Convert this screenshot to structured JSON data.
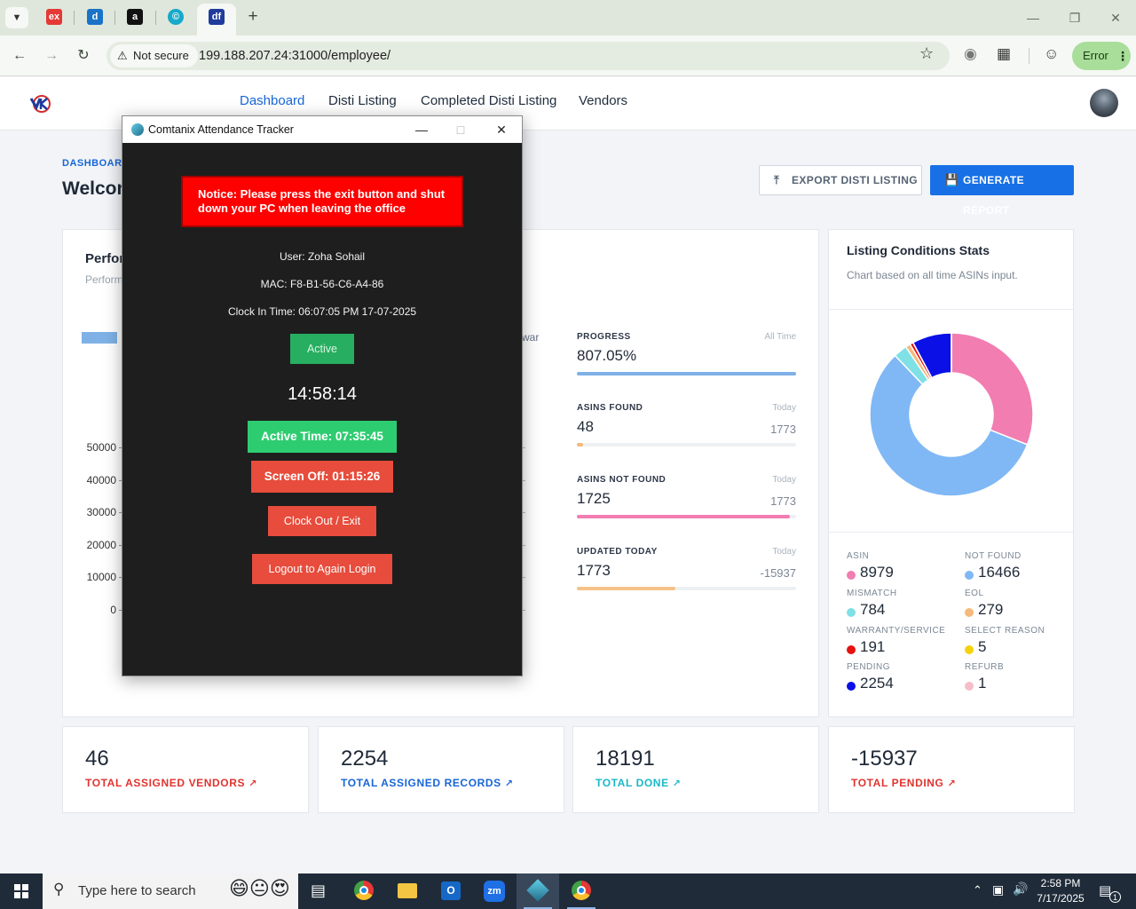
{
  "browser": {
    "url": "199.188.207.24:31000/employee/",
    "security_label": "Not secure",
    "error_label": "Error",
    "tabs": [
      {
        "icon": "ex-icon",
        "color": "#e53935",
        "glyph": "ex"
      },
      {
        "icon": "dell-like-icon",
        "color": "#1a73c8",
        "glyph": "d"
      },
      {
        "icon": "amazon-icon",
        "color": "#111111",
        "glyph": "a"
      },
      {
        "icon": "copyright-icon",
        "color": "#17a9c9",
        "glyph": "©"
      },
      {
        "icon": "df-icon",
        "color": "#1f3b9b",
        "glyph": "df"
      }
    ]
  },
  "nav": {
    "items": [
      "Dashboard",
      "Disti Listing",
      "Completed Disti Listing",
      "Vendors"
    ],
    "active_color": "#1766d6"
  },
  "page": {
    "breadcrumb": "DASHBOARD",
    "welcome": "Welcon",
    "export_label": "EXPORT DISTI LISTING",
    "report_label": "GENERATE REPORT"
  },
  "performance": {
    "title": "Perfor",
    "subtitle": "Perform",
    "legend_fragment": "war",
    "y_ticks": [
      "50000",
      "40000",
      "30000",
      "20000",
      "10000",
      "0"
    ],
    "progress": [
      {
        "label": "PROGRESS",
        "note": "All Time",
        "value": "807.05%",
        "total": "",
        "fill": 1.0,
        "color": "#7fb1e6"
      },
      {
        "label": "ASINS FOUND",
        "note": "Today",
        "value": "48",
        "total": "1773",
        "fill": 0.027,
        "color": "#f5b97a"
      },
      {
        "label": "ASINS NOT FOUND",
        "note": "Today",
        "value": "1725",
        "total": "1773",
        "fill": 0.973,
        "color": "#f27db1"
      },
      {
        "label": "UPDATED TODAY",
        "note": "Today",
        "value": "1773",
        "total": "-15937",
        "fill": 0.45,
        "color": "#f5c28a"
      }
    ]
  },
  "listing_stats": {
    "title": "Listing Conditions Stats",
    "subtitle": "Chart based on all time ASINs input.",
    "items": [
      {
        "label": "ASIN",
        "value": "8979",
        "color": "#f27db1"
      },
      {
        "label": "NOT FOUND",
        "value": "16466",
        "color": "#7fb8f5"
      },
      {
        "label": "MISMATCH",
        "value": "784",
        "color": "#7fe0e6"
      },
      {
        "label": "EOL",
        "value": "279",
        "color": "#f5b97a"
      },
      {
        "label": "WARRANTY/SERVICE",
        "value": "191",
        "color": "#e5120f"
      },
      {
        "label": "SELECT REASON",
        "value": "5",
        "color": "#f5d20f"
      },
      {
        "label": "PENDING",
        "value": "2254",
        "color": "#0a10e6"
      },
      {
        "label": "REFURB",
        "value": "1",
        "color": "#f5bdc9"
      }
    ]
  },
  "chart_data": {
    "type": "pie",
    "categories": [
      "ASIN",
      "NOT FOUND",
      "MISMATCH",
      "EOL",
      "WARRANTY/SERVICE",
      "SELECT REASON",
      "PENDING",
      "REFURB"
    ],
    "values": [
      8979,
      16466,
      784,
      279,
      191,
      5,
      2254,
      1
    ],
    "colors": [
      "#f27db1",
      "#7fb8f5",
      "#7fe0e6",
      "#f5b97a",
      "#e5120f",
      "#f5d20f",
      "#0a10e6",
      "#f5bdc9"
    ],
    "title": "Listing Conditions Stats",
    "donut": true
  },
  "kpis": [
    {
      "value": "46",
      "label": "TOTAL ASSIGNED VENDORS",
      "color": "#e0332f"
    },
    {
      "value": "2254",
      "label": "TOTAL ASSIGNED RECORDS",
      "color": "#1766d6"
    },
    {
      "value": "18191",
      "label": "TOTAL DONE",
      "color": "#1ab8c9"
    },
    {
      "value": "-15937",
      "label": "TOTAL PENDING",
      "color": "#e0332f"
    }
  ],
  "attendance": {
    "window_title": "Comtanix Attendance Tracker",
    "notice": "Notice: Please press the exit button and shut down your PC when leaving the office",
    "user": "User: Zoha Sohail",
    "mac": "MAC: F8-B1-56-C6-A4-86",
    "clock_in": "Clock In Time: 06:07:05 PM 17-07-2025",
    "status": "Active",
    "clock": "14:58:14",
    "active_time": "Active Time: 07:35:45",
    "screen_off": "Screen Off: 01:15:26",
    "clock_out": "Clock Out / Exit",
    "logout": "Logout to Again Login"
  },
  "taskbar": {
    "search_placeholder": "Type here to search",
    "time": "2:58 PM",
    "date": "7/17/2025",
    "notifications": "1"
  }
}
